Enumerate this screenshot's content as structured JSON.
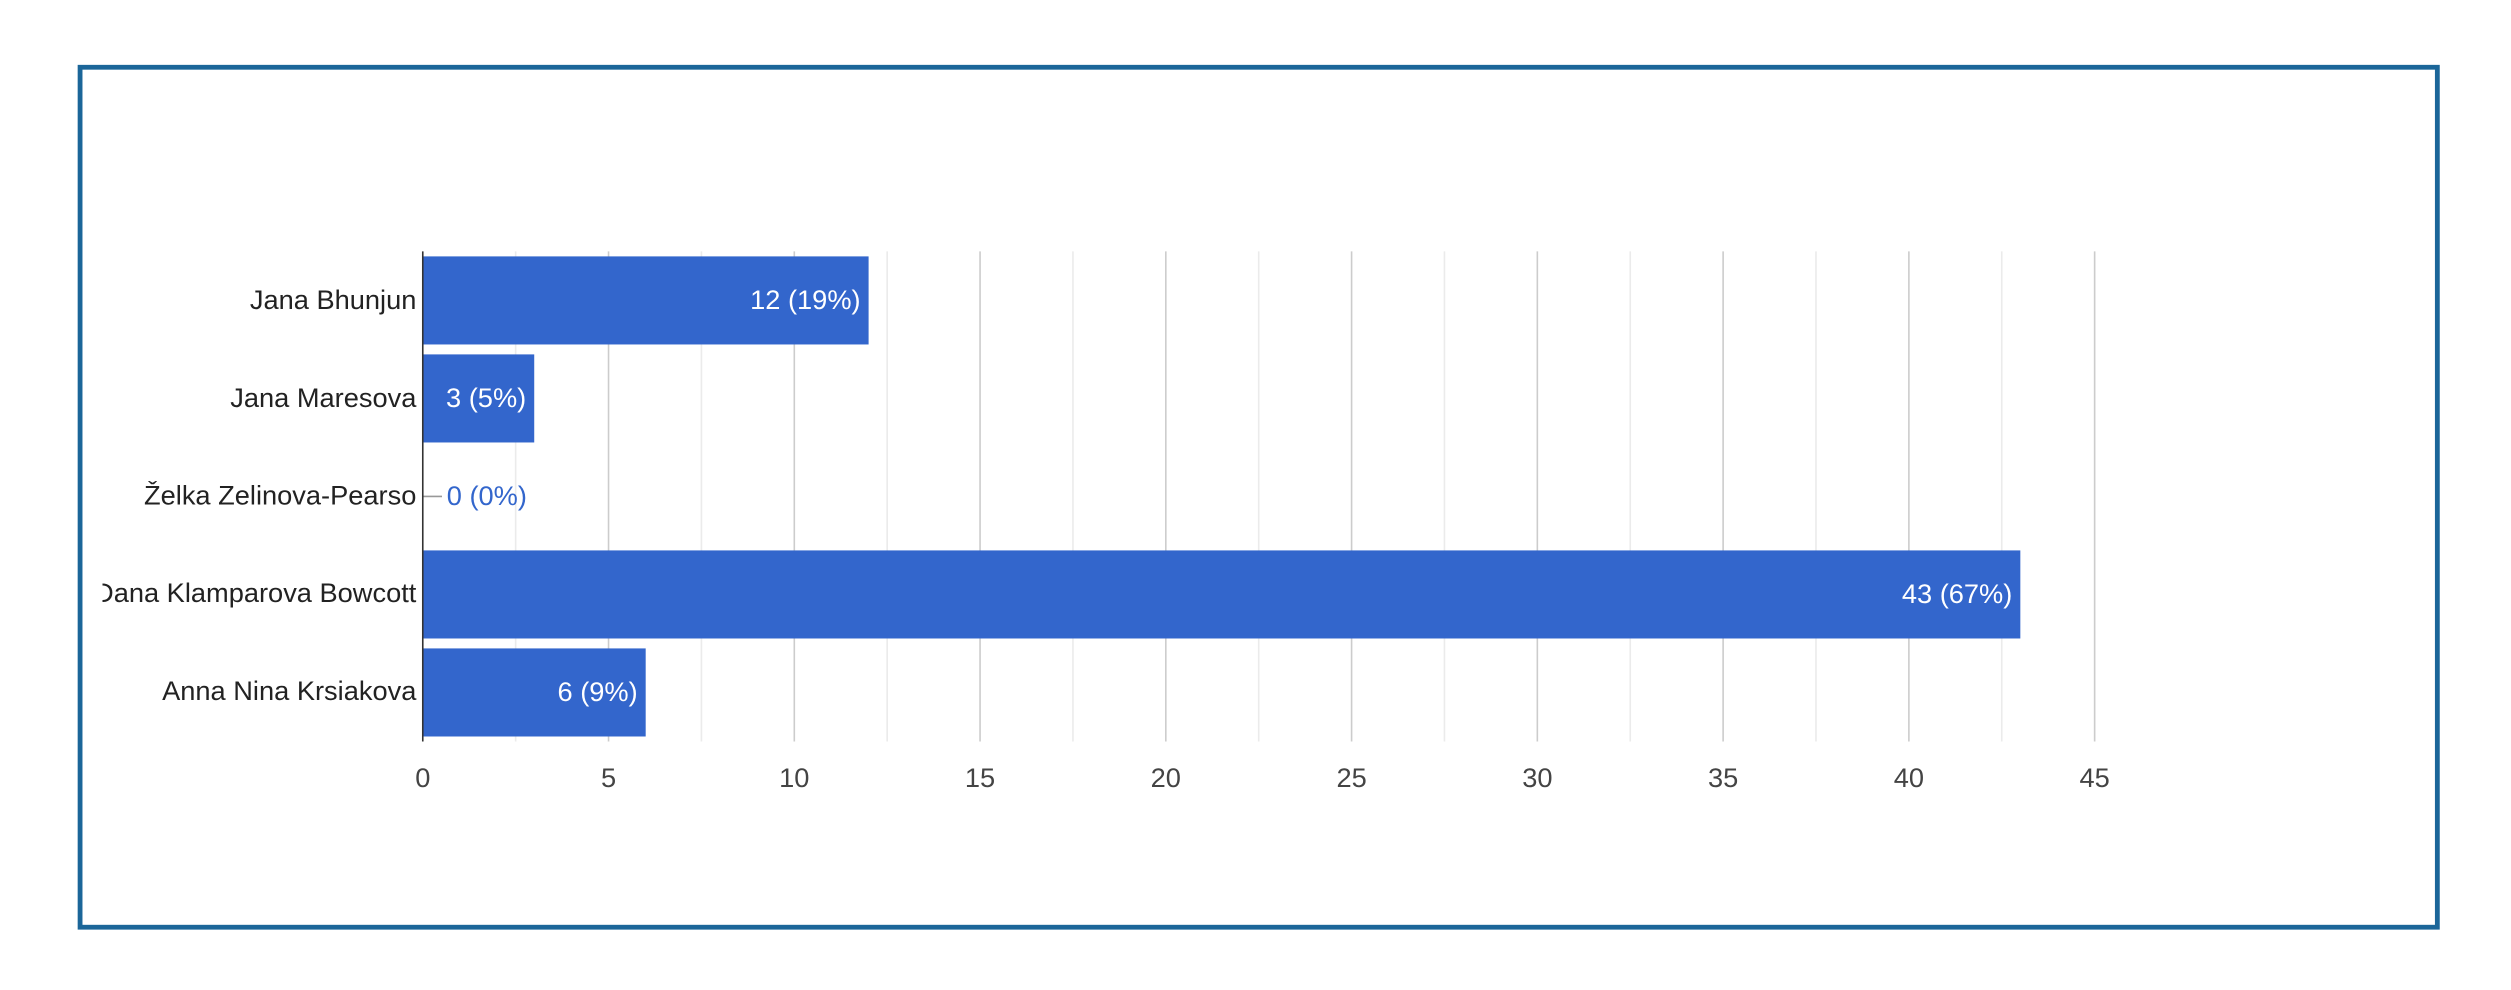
{
  "chart_data": {
    "type": "bar",
    "orientation": "horizontal",
    "categories": [
      "Jana Bhunjun",
      "Jana Maresova",
      "Želka Zelinova-Pearso",
      "Dana Klamparova Bowcott",
      "Anna Nina Krsiakova"
    ],
    "values": [
      12,
      3,
      0,
      43,
      6
    ],
    "value_labels": [
      "12 (19%)",
      "3 (5%)",
      "0 (0%)",
      "43 (67%)",
      "6 (9%)"
    ],
    "color": "#3366cc",
    "xlim": [
      0,
      45
    ],
    "xticks": [
      0,
      5,
      10,
      15,
      20,
      25,
      30,
      35,
      40,
      45
    ],
    "grid": true
  }
}
